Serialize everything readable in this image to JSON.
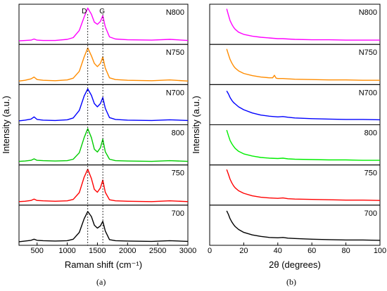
{
  "figure": {
    "panel_a_label": "(a)",
    "panel_b_label": "(b)"
  },
  "chart_data": [
    {
      "type": "line",
      "panel": "(a)",
      "xlabel": "Raman shift (cm⁻¹)",
      "ylabel": "Intensity (a.u.)",
      "xlim": [
        200,
        3000
      ],
      "xticks": [
        500,
        1000,
        1500,
        2000,
        2500,
        3000
      ],
      "peak_labels": [
        "D",
        "G"
      ],
      "peak_positions": [
        1340,
        1590
      ],
      "series": [
        {
          "name": "N800",
          "color": "#ff00ff",
          "ylim": [
            0,
            1.0
          ],
          "x": [
            200,
            300,
            400,
            450,
            500,
            600,
            800,
            1000,
            1100,
            1200,
            1280,
            1340,
            1400,
            1450,
            1500,
            1550,
            1590,
            1630,
            1700,
            1800,
            2000,
            2400,
            2700,
            3000
          ],
          "y": [
            0.06,
            0.07,
            0.08,
            0.11,
            0.08,
            0.07,
            0.07,
            0.1,
            0.15,
            0.35,
            0.72,
            0.97,
            0.8,
            0.58,
            0.52,
            0.6,
            0.76,
            0.45,
            0.17,
            0.11,
            0.09,
            0.08,
            0.1,
            0.07
          ]
        },
        {
          "name": "N750",
          "color": "#ff8c00",
          "ylim": [
            0,
            1.0
          ],
          "x": [
            200,
            300,
            400,
            450,
            500,
            600,
            800,
            1000,
            1100,
            1200,
            1280,
            1340,
            1400,
            1450,
            1500,
            1550,
            1590,
            1630,
            1700,
            1800,
            2000,
            2400,
            2700,
            3000
          ],
          "y": [
            0.06,
            0.08,
            0.12,
            0.17,
            0.1,
            0.08,
            0.07,
            0.09,
            0.14,
            0.33,
            0.73,
            0.98,
            0.76,
            0.55,
            0.46,
            0.55,
            0.73,
            0.42,
            0.15,
            0.1,
            0.08,
            0.07,
            0.09,
            0.06
          ]
        },
        {
          "name": "N700",
          "color": "#0000ff",
          "ylim": [
            0,
            1.0
          ],
          "x": [
            200,
            300,
            400,
            450,
            500,
            600,
            800,
            1000,
            1100,
            1200,
            1280,
            1340,
            1400,
            1450,
            1500,
            1550,
            1590,
            1630,
            1700,
            1800,
            2000,
            2400,
            2700,
            3000
          ],
          "y": [
            0.07,
            0.09,
            0.12,
            0.18,
            0.11,
            0.09,
            0.08,
            0.1,
            0.15,
            0.36,
            0.76,
            0.96,
            0.78,
            0.55,
            0.46,
            0.55,
            0.72,
            0.42,
            0.16,
            0.11,
            0.09,
            0.08,
            0.1,
            0.08
          ]
        },
        {
          "name": "800",
          "color": "#00cc00",
          "ylim": [
            0,
            1.0
          ],
          "x": [
            200,
            300,
            400,
            450,
            500,
            600,
            800,
            1000,
            1100,
            1200,
            1280,
            1340,
            1400,
            1450,
            1500,
            1550,
            1590,
            1630,
            1700,
            1800,
            2000,
            2400,
            2700,
            3000
          ],
          "y": [
            0.06,
            0.07,
            0.09,
            0.13,
            0.09,
            0.08,
            0.07,
            0.08,
            0.12,
            0.3,
            0.72,
            0.97,
            0.72,
            0.4,
            0.32,
            0.44,
            0.68,
            0.33,
            0.12,
            0.08,
            0.07,
            0.06,
            0.08,
            0.06
          ]
        },
        {
          "name": "750",
          "color": "#ff0000",
          "ylim": [
            0,
            1.0
          ],
          "x": [
            200,
            300,
            400,
            450,
            500,
            600,
            800,
            1000,
            1100,
            1200,
            1280,
            1340,
            1400,
            1450,
            1500,
            1550,
            1590,
            1630,
            1700,
            1800,
            2000,
            2400,
            2700,
            3000
          ],
          "y": [
            0.06,
            0.07,
            0.09,
            0.13,
            0.09,
            0.08,
            0.07,
            0.08,
            0.12,
            0.31,
            0.74,
            0.96,
            0.7,
            0.4,
            0.32,
            0.44,
            0.66,
            0.32,
            0.11,
            0.08,
            0.07,
            0.06,
            0.08,
            0.06
          ]
        },
        {
          "name": "700",
          "color": "#000000",
          "ylim": [
            0,
            1.0
          ],
          "x": [
            200,
            300,
            400,
            450,
            500,
            600,
            800,
            1000,
            1100,
            1200,
            1280,
            1340,
            1400,
            1450,
            1500,
            1550,
            1590,
            1630,
            1700,
            1800,
            2000,
            2400,
            2700,
            3000
          ],
          "y": [
            0.06,
            0.08,
            0.1,
            0.13,
            0.1,
            0.09,
            0.08,
            0.09,
            0.13,
            0.32,
            0.7,
            0.9,
            0.76,
            0.52,
            0.44,
            0.5,
            0.63,
            0.36,
            0.12,
            0.09,
            0.08,
            0.07,
            0.09,
            0.07
          ]
        }
      ]
    },
    {
      "type": "line",
      "panel": "(b)",
      "xlabel": "2θ (degrees)",
      "ylabel": "Intensity (a.u.)",
      "xlim": [
        0,
        100
      ],
      "xticks": [
        0,
        20,
        40,
        60,
        80,
        100
      ],
      "series": [
        {
          "name": "N800",
          "color": "#ff00ff",
          "ylim": [
            0,
            1.0
          ],
          "x": [
            10,
            11,
            12,
            13,
            14,
            15,
            17,
            20,
            25,
            30,
            35,
            40,
            43,
            46,
            50,
            60,
            70,
            80,
            90,
            100
          ],
          "y": [
            0.95,
            0.78,
            0.62,
            0.52,
            0.44,
            0.38,
            0.3,
            0.24,
            0.19,
            0.16,
            0.14,
            0.12,
            0.12,
            0.11,
            0.1,
            0.09,
            0.09,
            0.08,
            0.08,
            0.08
          ]
        },
        {
          "name": "N750",
          "color": "#ff8c00",
          "ylim": [
            0,
            1.0
          ],
          "x": [
            10,
            11,
            12,
            13,
            14,
            15,
            17,
            20,
            25,
            30,
            35,
            37,
            38,
            39,
            40,
            43,
            46,
            50,
            60,
            70,
            80,
            90,
            100
          ],
          "y": [
            0.95,
            0.8,
            0.66,
            0.56,
            0.48,
            0.42,
            0.34,
            0.27,
            0.21,
            0.17,
            0.15,
            0.15,
            0.22,
            0.14,
            0.13,
            0.13,
            0.12,
            0.11,
            0.1,
            0.09,
            0.09,
            0.08,
            0.08
          ]
        },
        {
          "name": "N700",
          "color": "#0000ff",
          "ylim": [
            0,
            1.0
          ],
          "x": [
            10,
            11,
            12,
            13,
            14,
            15,
            17,
            20,
            25,
            30,
            35,
            40,
            43,
            46,
            50,
            60,
            70,
            80,
            90,
            100
          ],
          "y": [
            0.9,
            0.82,
            0.72,
            0.64,
            0.58,
            0.54,
            0.46,
            0.38,
            0.29,
            0.23,
            0.2,
            0.18,
            0.19,
            0.17,
            0.15,
            0.13,
            0.12,
            0.11,
            0.11,
            0.1
          ]
        },
        {
          "name": "800",
          "color": "#00ee00",
          "ylim": [
            0,
            1.0
          ],
          "x": [
            10,
            11,
            12,
            13,
            14,
            15,
            17,
            20,
            25,
            30,
            35,
            40,
            43,
            46,
            50,
            60,
            70,
            80,
            90,
            100
          ],
          "y": [
            0.93,
            0.78,
            0.64,
            0.55,
            0.48,
            0.42,
            0.34,
            0.27,
            0.21,
            0.17,
            0.15,
            0.14,
            0.15,
            0.13,
            0.12,
            0.11,
            0.1,
            0.1,
            0.09,
            0.09
          ]
        },
        {
          "name": "750",
          "color": "#ff0000",
          "ylim": [
            0,
            1.0
          ],
          "x": [
            10,
            11,
            12,
            13,
            14,
            15,
            17,
            20,
            25,
            30,
            35,
            40,
            43,
            46,
            50,
            60,
            70,
            80,
            90,
            100
          ],
          "y": [
            0.95,
            0.82,
            0.68,
            0.58,
            0.5,
            0.44,
            0.36,
            0.29,
            0.22,
            0.18,
            0.16,
            0.15,
            0.16,
            0.14,
            0.13,
            0.12,
            0.11,
            0.1,
            0.1,
            0.09
          ]
        },
        {
          "name": "700",
          "color": "#000000",
          "ylim": [
            0,
            1.0
          ],
          "x": [
            10,
            11,
            12,
            13,
            14,
            15,
            17,
            20,
            25,
            30,
            35,
            40,
            43,
            46,
            50,
            60,
            70,
            80,
            90,
            100
          ],
          "y": [
            0.92,
            0.82,
            0.7,
            0.61,
            0.54,
            0.48,
            0.4,
            0.32,
            0.25,
            0.21,
            0.18,
            0.17,
            0.18,
            0.16,
            0.15,
            0.13,
            0.12,
            0.11,
            0.11,
            0.1
          ]
        }
      ]
    }
  ]
}
